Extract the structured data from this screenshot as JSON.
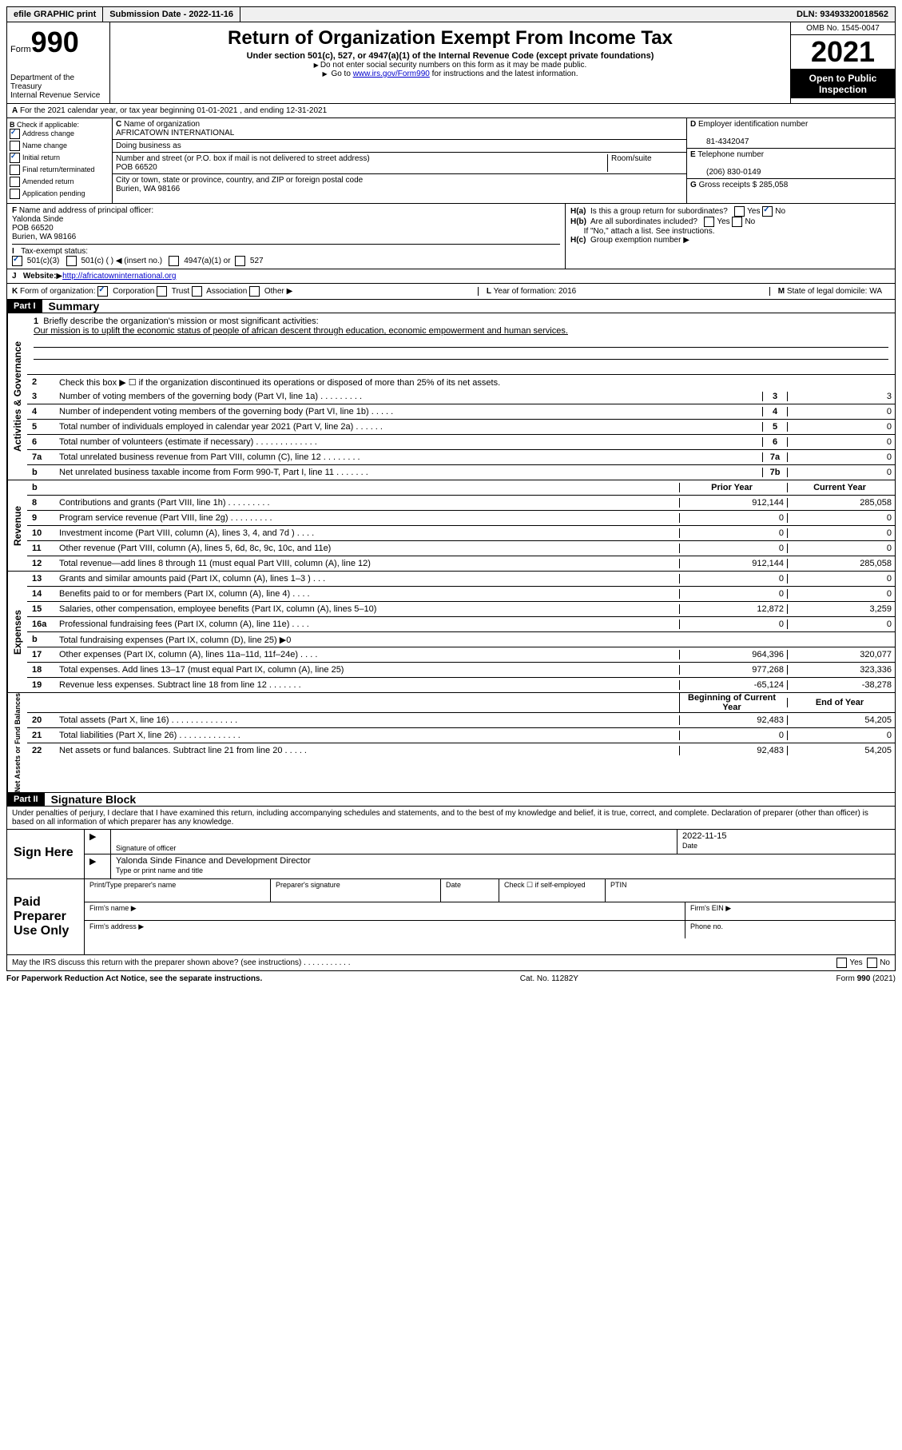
{
  "top": {
    "efile": "efile GRAPHIC print",
    "sub_label": "Submission Date - 2022-11-16",
    "dln": "DLN: 93493320018562"
  },
  "header": {
    "form_word": "Form",
    "form_num": "990",
    "dept": "Department of the Treasury",
    "irs": "Internal Revenue Service",
    "title": "Return of Organization Exempt From Income Tax",
    "subtitle": "Under section 501(c), 527, or 4947(a)(1) of the Internal Revenue Code (except private foundations)",
    "instr1": "Do not enter social security numbers on this form as it may be made public.",
    "instr2_pre": "Go to ",
    "instr2_link": "www.irs.gov/Form990",
    "instr2_post": " for instructions and the latest information.",
    "omb": "OMB No. 1545-0047",
    "year": "2021",
    "inspection": "Open to Public Inspection"
  },
  "line_a": "For the 2021 calendar year, or tax year beginning 01-01-2021   , and ending 12-31-2021",
  "box_b": {
    "label": "Check if applicable:",
    "items": [
      "Address change",
      "Name change",
      "Initial return",
      "Final return/terminated",
      "Amended return",
      "Application pending"
    ],
    "checked": [
      true,
      false,
      true,
      false,
      false,
      false
    ]
  },
  "box_c": {
    "name_label": "Name of organization",
    "name": "AFRICATOWN INTERNATIONAL",
    "dba_label": "Doing business as",
    "addr_label": "Number and street (or P.O. box if mail is not delivered to street address)",
    "room_label": "Room/suite",
    "addr": "POB 66520",
    "city_label": "City or town, state or province, country, and ZIP or foreign postal code",
    "city": "Burien, WA  98166"
  },
  "box_d": {
    "label": "Employer identification number",
    "val": "81-4342047"
  },
  "box_e": {
    "label": "Telephone number",
    "val": "(206) 830-0149"
  },
  "box_g": {
    "label": "Gross receipts $",
    "val": "285,058"
  },
  "box_f": {
    "label": "Name and address of principal officer:",
    "name": "Yalonda Sinde",
    "addr1": "POB 66520",
    "addr2": "Burien, WA  98166"
  },
  "box_h": {
    "a": "Is this a group return for subordinates?",
    "b": "Are all subordinates included?",
    "b_note": "If \"No,\" attach a list. See instructions.",
    "c": "Group exemption number"
  },
  "row_i": {
    "label": "Tax-exempt status:",
    "opts": [
      "501(c)(3)",
      "501(c) (  ) ◀ (insert no.)",
      "4947(a)(1) or",
      "527"
    ]
  },
  "row_j": {
    "label": "Website:",
    "val": "http://africatowninternational.org"
  },
  "row_k": {
    "label": "Form of organization:",
    "opts": [
      "Corporation",
      "Trust",
      "Association",
      "Other"
    ]
  },
  "row_l": {
    "label": "Year of formation:",
    "val": "2016"
  },
  "row_m": {
    "label": "State of legal domicile:",
    "val": "WA"
  },
  "part1": {
    "header": "Part I",
    "title": "Summary",
    "q1": "Briefly describe the organization's mission or most significant activities:",
    "mission": "Our mission is to uplift the economic status of people of african descent through education, economic empowerment and human services.",
    "q2": "Check this box ▶ ☐  if the organization discontinued its operations or disposed of more than 25% of its net assets.",
    "lines_gov": [
      {
        "n": "3",
        "t": "Number of voting members of the governing body (Part VI, line 1a)   .    .    .    .    .    .    .    .    .",
        "c": "3",
        "v": "3"
      },
      {
        "n": "4",
        "t": "Number of independent voting members of the governing body (Part VI, line 1b)   .    .    .    .    .",
        "c": "4",
        "v": "0"
      },
      {
        "n": "5",
        "t": "Total number of individuals employed in calendar year 2021 (Part V, line 2a)   .    .    .    .    .    .",
        "c": "5",
        "v": "0"
      },
      {
        "n": "6",
        "t": "Total number of volunteers (estimate if necessary)   .    .    .    .    .    .    .    .    .    .    .    .    .",
        "c": "6",
        "v": "0"
      },
      {
        "n": "7a",
        "t": "Total unrelated business revenue from Part VIII, column (C), line 12   .    .    .    .    .    .    .    .",
        "c": "7a",
        "v": "0"
      },
      {
        "n": "b",
        "t": "Net unrelated business taxable income from Form 990-T, Part I, line 11   .    .    .    .    .    .    .",
        "c": "7b",
        "v": "0"
      }
    ],
    "col_prior": "Prior Year",
    "col_current": "Current Year",
    "lines_rev": [
      {
        "n": "8",
        "t": "Contributions and grants (Part VIII, line 1h)   .    .    .    .    .    .    .    .    .",
        "p": "912,144",
        "c": "285,058"
      },
      {
        "n": "9",
        "t": "Program service revenue (Part VIII, line 2g)   .    .    .    .    .    .    .    .    .",
        "p": "0",
        "c": "0"
      },
      {
        "n": "10",
        "t": "Investment income (Part VIII, column (A), lines 3, 4, and 7d )   .    .    .    .",
        "p": "0",
        "c": "0"
      },
      {
        "n": "11",
        "t": "Other revenue (Part VIII, column (A), lines 5, 6d, 8c, 9c, 10c, and 11e)",
        "p": "0",
        "c": "0"
      },
      {
        "n": "12",
        "t": "Total revenue—add lines 8 through 11 (must equal Part VIII, column (A), line 12)",
        "p": "912,144",
        "c": "285,058"
      }
    ],
    "lines_exp": [
      {
        "n": "13",
        "t": "Grants and similar amounts paid (Part IX, column (A), lines 1–3 )   .    .    .",
        "p": "0",
        "c": "0"
      },
      {
        "n": "14",
        "t": "Benefits paid to or for members (Part IX, column (A), line 4)   .    .    .    .",
        "p": "0",
        "c": "0"
      },
      {
        "n": "15",
        "t": "Salaries, other compensation, employee benefits (Part IX, column (A), lines 5–10)",
        "p": "12,872",
        "c": "3,259"
      },
      {
        "n": "16a",
        "t": "Professional fundraising fees (Part IX, column (A), line 11e)   .    .    .    .",
        "p": "0",
        "c": "0"
      },
      {
        "n": "b",
        "t": "Total fundraising expenses (Part IX, column (D), line 25) ▶0",
        "p": "",
        "c": "",
        "shaded": true
      },
      {
        "n": "17",
        "t": "Other expenses (Part IX, column (A), lines 11a–11d, 11f–24e)   .    .    .    .",
        "p": "964,396",
        "c": "320,077"
      },
      {
        "n": "18",
        "t": "Total expenses. Add lines 13–17 (must equal Part IX, column (A), line 25)",
        "p": "977,268",
        "c": "323,336"
      },
      {
        "n": "19",
        "t": "Revenue less expenses. Subtract line 18 from line 12   .    .    .    .    .    .    .",
        "p": "-65,124",
        "c": "-38,278"
      }
    ],
    "col_begin": "Beginning of Current Year",
    "col_end": "End of Year",
    "lines_net": [
      {
        "n": "20",
        "t": "Total assets (Part X, line 16)   .    .    .    .    .    .    .    .    .    .    .    .    .    .",
        "p": "92,483",
        "c": "54,205"
      },
      {
        "n": "21",
        "t": "Total liabilities (Part X, line 26)   .    .    .    .    .    .    .    .    .    .    .    .    .",
        "p": "0",
        "c": "0"
      },
      {
        "n": "22",
        "t": "Net assets or fund balances. Subtract line 21 from line 20   .    .    .    .    .",
        "p": "92,483",
        "c": "54,205"
      }
    ],
    "vlabels": [
      "Activities & Governance",
      "Revenue",
      "Expenses",
      "Net Assets or Fund Balances"
    ]
  },
  "part2": {
    "header": "Part II",
    "title": "Signature Block",
    "decl": "Under penalties of perjury, I declare that I have examined this return, including accompanying schedules and statements, and to the best of my knowledge and belief, it is true, correct, and complete. Declaration of preparer (other than officer) is based on all information of which preparer has any knowledge.",
    "sign_here": "Sign Here",
    "sig_officer": "Signature of officer",
    "date_label": "Date",
    "date": "2022-11-15",
    "name_line": "Yalonda Sinde Finance and Development Director",
    "name_label": "Type or print name and title",
    "paid": "Paid Preparer Use Only",
    "prep_name": "Print/Type preparer's name",
    "prep_sig": "Preparer's signature",
    "prep_date": "Date",
    "check_self": "Check ☐ if self-employed",
    "ptin": "PTIN",
    "firm_name": "Firm's name  ▶",
    "firm_ein": "Firm's EIN ▶",
    "firm_addr": "Firm's address ▶",
    "phone": "Phone no."
  },
  "bottom": {
    "discuss": "May the IRS discuss this return with the preparer shown above? (see instructions)   .    .    .    .    .    .    .    .    .    .    .",
    "pra": "For Paperwork Reduction Act Notice, see the separate instructions.",
    "cat": "Cat. No. 11282Y",
    "form": "Form 990 (2021)"
  }
}
